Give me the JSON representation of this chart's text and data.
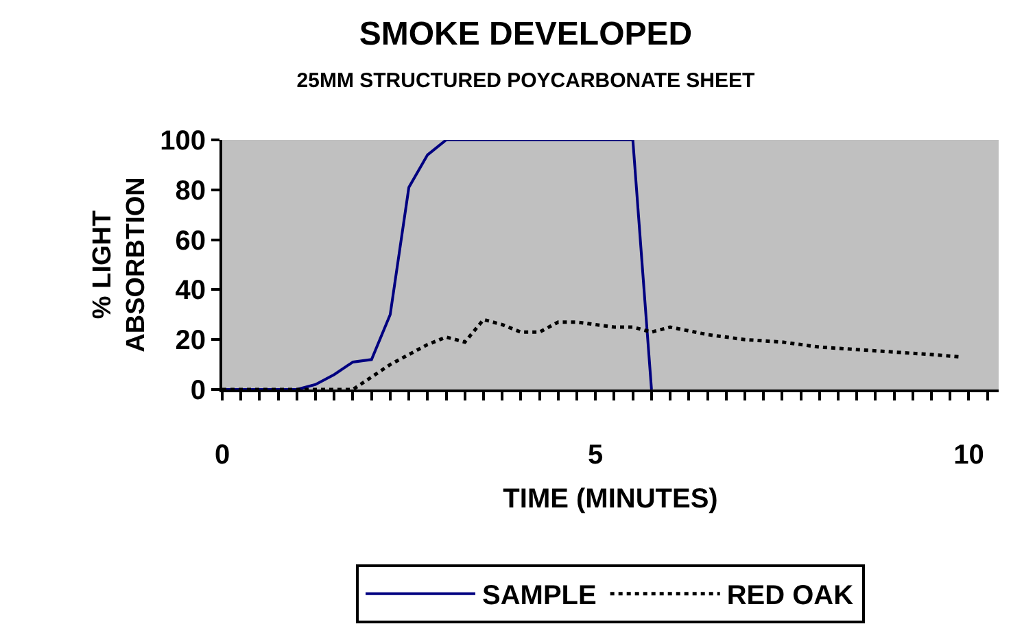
{
  "chart_data": {
    "type": "line",
    "title": "SMOKE DEVELOPED",
    "subtitle": "25MM STRUCTURED POYCARBONATE SHEET",
    "xlabel": "TIME (MINUTES)",
    "ylabel": "% LIGHT\nABSORBTION",
    "xlim": [
      0,
      10.4
    ],
    "ylim": [
      0,
      100
    ],
    "xticks": [
      0,
      {
        "value": 0.25,
        "label": null
      },
      {
        "value": 0.5,
        "label": null
      },
      {
        "value": 0.75,
        "label": null
      },
      {
        "value": 1,
        "label": null
      },
      {
        "value": 1.25,
        "label": null
      },
      {
        "value": 1.5,
        "label": null
      },
      {
        "value": 1.75,
        "label": null
      },
      {
        "value": 2,
        "label": null
      },
      {
        "value": 2.25,
        "label": null
      },
      {
        "value": 2.5,
        "label": null
      },
      {
        "value": 2.75,
        "label": null
      },
      {
        "value": 3,
        "label": null
      },
      {
        "value": 3.25,
        "label": null
      },
      {
        "value": 3.5,
        "label": null
      },
      {
        "value": 3.75,
        "label": null
      },
      {
        "value": 4,
        "label": null
      },
      {
        "value": 4.25,
        "label": null
      },
      {
        "value": 4.5,
        "label": null
      },
      {
        "value": 4.75,
        "label": null
      },
      5,
      {
        "value": 5.25,
        "label": null
      },
      {
        "value": 5.5,
        "label": null
      },
      {
        "value": 5.75,
        "label": null
      },
      {
        "value": 6,
        "label": null
      },
      {
        "value": 6.25,
        "label": null
      },
      {
        "value": 6.5,
        "label": null
      },
      {
        "value": 6.75,
        "label": null
      },
      {
        "value": 7,
        "label": null
      },
      {
        "value": 7.25,
        "label": null
      },
      {
        "value": 7.5,
        "label": null
      },
      {
        "value": 7.75,
        "label": null
      },
      {
        "value": 8,
        "label": null
      },
      {
        "value": 8.25,
        "label": null
      },
      {
        "value": 8.5,
        "label": null
      },
      {
        "value": 8.75,
        "label": null
      },
      {
        "value": 9,
        "label": null
      },
      {
        "value": 9.25,
        "label": null
      },
      {
        "value": 9.5,
        "label": null
      },
      {
        "value": 9.75,
        "label": null
      },
      10,
      {
        "value": 10.25,
        "label": null
      }
    ],
    "yticks": [
      0,
      20,
      40,
      60,
      80,
      100
    ],
    "grid": false,
    "legend": "bottom",
    "marker": "none",
    "series": [
      {
        "name": "SAMPLE",
        "color": "#000080",
        "line_style": "solid",
        "x": [
          0,
          0.25,
          0.5,
          0.75,
          1,
          1.25,
          1.5,
          1.75,
          2,
          2.25,
          2.5,
          2.75,
          3,
          3.5,
          4,
          4.5,
          5,
          5.5,
          5.75
        ],
        "values": [
          0,
          0,
          0,
          0,
          0,
          2,
          6,
          11,
          12,
          30,
          81,
          94,
          100,
          100,
          100,
          100,
          100,
          100,
          0
        ]
      },
      {
        "name": "RED OAK",
        "color": "#000000",
        "line_style": "dotted",
        "x": [
          0,
          0.5,
          1,
          1.5,
          1.75,
          2,
          2.25,
          2.5,
          2.75,
          3,
          3.25,
          3.5,
          3.75,
          4,
          4.25,
          4.5,
          4.75,
          5,
          5.25,
          5.5,
          5.75,
          6,
          6.5,
          7,
          7.5,
          8,
          8.5,
          9,
          9.5,
          9.9
        ],
        "values": [
          0,
          0,
          0,
          0,
          0,
          5,
          10,
          14,
          18,
          21,
          19,
          28,
          26,
          23,
          23,
          27,
          27,
          26,
          25,
          25,
          23,
          25,
          22,
          20,
          19,
          17,
          16,
          15,
          14,
          13
        ]
      }
    ]
  }
}
